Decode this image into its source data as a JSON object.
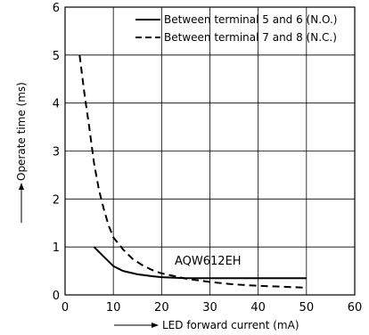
{
  "chart_data": {
    "type": "line",
    "xlabel": "LED forward current (mA)",
    "ylabel": "Operate time (ms)",
    "xlim": [
      0,
      60
    ],
    "ylim": [
      0,
      6
    ],
    "xticks": [
      0,
      10,
      20,
      30,
      40,
      50,
      60
    ],
    "yticks": [
      0,
      1,
      2,
      3,
      4,
      5,
      6
    ],
    "grid": true,
    "legend_position": "top-right",
    "annotation": "AQW612EH",
    "series": [
      {
        "name": "Between terminal 5 and 6 (N.O.)",
        "style": "solid",
        "x": [
          6,
          8,
          10,
          12,
          15,
          18,
          20,
          25,
          30,
          35,
          40,
          45,
          50
        ],
        "y": [
          1.0,
          0.8,
          0.6,
          0.5,
          0.43,
          0.39,
          0.37,
          0.35,
          0.35,
          0.35,
          0.35,
          0.35,
          0.35
        ]
      },
      {
        "name": "Between terminal 7 and 8 (N.C.)",
        "style": "dashed",
        "x": [
          3,
          4,
          5,
          6,
          7,
          8,
          9,
          10,
          12,
          14,
          16,
          18,
          20,
          25,
          30,
          35,
          40,
          45,
          50
        ],
        "y": [
          5.0,
          4.2,
          3.5,
          2.75,
          2.2,
          1.8,
          1.45,
          1.2,
          0.95,
          0.75,
          0.62,
          0.52,
          0.45,
          0.34,
          0.27,
          0.22,
          0.19,
          0.17,
          0.15
        ]
      }
    ]
  }
}
